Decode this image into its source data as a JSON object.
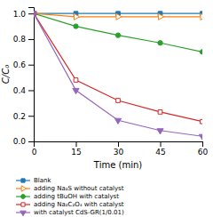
{
  "chart_data": {
    "type": "line",
    "x": [
      0,
      15,
      30,
      45,
      60
    ],
    "series": [
      {
        "name": "Blank",
        "values": [
          1.0,
          1.0,
          1.0,
          1.0,
          1.0
        ],
        "marker": "square"
      },
      {
        "name": "adding Na₂S without catalyst",
        "values": [
          1.0,
          0.975,
          0.975,
          0.975,
          0.975
        ],
        "marker": "triangle-right-open"
      },
      {
        "name": "adding tBuOH with catalyst",
        "values": [
          1.0,
          0.9,
          0.83,
          0.77,
          0.7
        ],
        "marker": "circle"
      },
      {
        "name": "adding Na₂C₂O₄ with catalyst",
        "values": [
          1.0,
          0.48,
          0.32,
          0.23,
          0.155
        ],
        "marker": "square-open"
      },
      {
        "name": "with catalyst CdS-GR(1/0.01)",
        "values": [
          1.0,
          0.4,
          0.165,
          0.085,
          0.04
        ],
        "marker": "triangle-down"
      }
    ],
    "x_label": "Time (min)",
    "y_label": "C/C₀",
    "xlim": [
      0,
      60
    ],
    "ylim": [
      0.0,
      1.05
    ],
    "xticks": [
      0,
      15,
      30,
      45,
      60
    ],
    "yticks": [
      {
        "value": 0.0,
        "label": "0.0"
      },
      0.2,
      0.4,
      0.6,
      0.8,
      {
        "value": 1.0,
        "label": "1.0"
      }
    ],
    "grid": false,
    "legend": "bottom"
  }
}
